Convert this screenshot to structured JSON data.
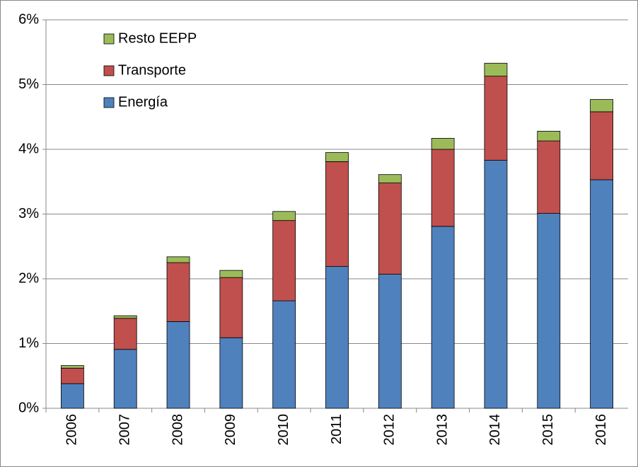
{
  "chart_data": {
    "type": "stacked_bar",
    "categories": [
      "2006",
      "2007",
      "2008",
      "2009",
      "2010",
      "2011",
      "2012",
      "2013",
      "2014",
      "2015",
      "2016"
    ],
    "series": [
      {
        "name": "Energía",
        "color": "#4f81bd",
        "values": [
          0.38,
          0.91,
          1.34,
          1.09,
          1.66,
          2.19,
          2.07,
          2.81,
          3.83,
          3.01,
          3.53
        ]
      },
      {
        "name": "Transporte",
        "color": "#c0504d",
        "values": [
          0.24,
          0.48,
          0.91,
          0.93,
          1.24,
          1.62,
          1.41,
          1.19,
          1.3,
          1.12,
          1.05
        ]
      },
      {
        "name": "Resto EEPP",
        "color": "#9bbb59",
        "values": [
          0.04,
          0.04,
          0.09,
          0.11,
          0.14,
          0.14,
          0.13,
          0.17,
          0.2,
          0.15,
          0.19
        ]
      }
    ],
    "ylim": [
      0,
      6
    ],
    "yticks": [
      {
        "value": 0,
        "label": "0%"
      },
      {
        "value": 1,
        "label": "1%"
      },
      {
        "value": 2,
        "label": "2%"
      },
      {
        "value": 3,
        "label": "3%"
      },
      {
        "value": 4,
        "label": "4%"
      },
      {
        "value": 5,
        "label": "5%"
      },
      {
        "value": 6,
        "label": "6%"
      }
    ],
    "grid": true,
    "legend": "upper-left"
  }
}
